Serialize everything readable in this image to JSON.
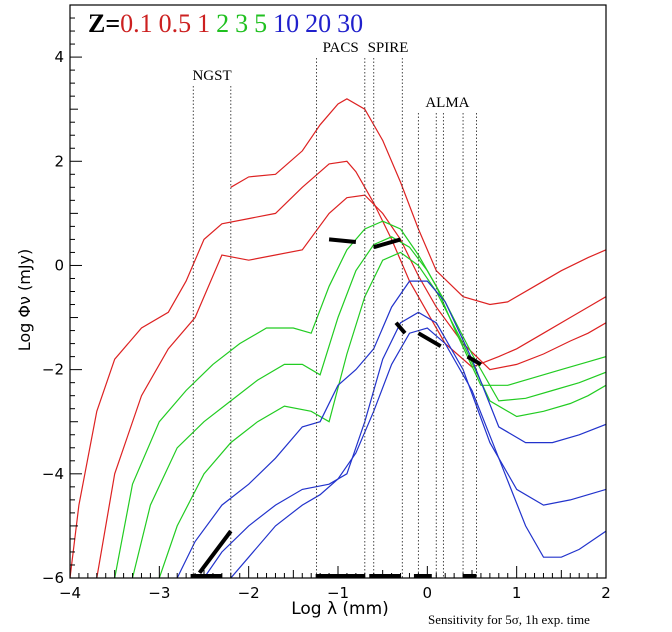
{
  "chart_data": {
    "type": "line",
    "title": "",
    "xlabel": "Log λ (mm)",
    "ylabel": "Log Φν (mJy)",
    "xlim": [
      -4,
      2
    ],
    "ylim": [
      -6,
      5
    ],
    "xticks": [
      "-4",
      "-3",
      "-2",
      "-1",
      "0",
      "1",
      "2"
    ],
    "yticks": [
      "-6",
      "-4",
      "-2",
      "0",
      "2",
      "4"
    ],
    "grid": false,
    "legend": {
      "prefix": "Z=",
      "entries": [
        {
          "label": "0.1",
          "color": "#cc2020"
        },
        {
          "label": "0.5",
          "color": "#cc2020"
        },
        {
          "label": "1",
          "color": "#cc2020"
        },
        {
          "label": "2",
          "color": "#20c020"
        },
        {
          "label": "3",
          "color": "#20c020"
        },
        {
          "label": "5",
          "color": "#20c020"
        },
        {
          "label": "10",
          "color": "#2020cc"
        },
        {
          "label": "20",
          "color": "#2020cc"
        },
        {
          "label": "30",
          "color": "#2020cc"
        }
      ]
    },
    "instruments": [
      {
        "name": "NGST",
        "x": [
          -2.62,
          -2.2
        ]
      },
      {
        "name": "PACS",
        "x": [
          -1.24,
          -0.7
        ]
      },
      {
        "name": "SPIRE",
        "x": [
          -0.6,
          -0.28
        ]
      },
      {
        "name": "ALMA",
        "x": [
          -0.1,
          0.1,
          0.18,
          0.4,
          0.55
        ]
      }
    ],
    "series": [
      {
        "name": "0.1",
        "color": "#dd2222",
        "x": [
          -2.2,
          -2.0,
          -1.7,
          -1.4,
          -1.2,
          -1.0,
          -0.9,
          -0.7,
          -0.5,
          -0.3,
          -0.1,
          0.1,
          0.4,
          0.7,
          0.9,
          1.2,
          1.5,
          1.8,
          2.0
        ],
        "y": [
          1.5,
          1.7,
          1.75,
          2.2,
          2.7,
          3.1,
          3.2,
          3.0,
          2.4,
          1.6,
          0.7,
          -0.1,
          -0.6,
          -0.75,
          -0.7,
          -0.4,
          -0.1,
          0.15,
          0.3
        ]
      },
      {
        "name": "0.5",
        "color": "#dd2222",
        "x": [
          -4.0,
          -3.9,
          -3.7,
          -3.5,
          -3.2,
          -2.9,
          -2.7,
          -2.5,
          -2.3,
          -2.0,
          -1.7,
          -1.4,
          -1.1,
          -0.9,
          -0.8,
          -0.6,
          -0.4,
          -0.2,
          0.0,
          0.2,
          0.5,
          0.8,
          1.0,
          1.3,
          1.6,
          1.8,
          2.0
        ],
        "y": [
          -6.0,
          -4.6,
          -2.8,
          -1.8,
          -1.2,
          -0.9,
          -0.3,
          0.5,
          0.8,
          0.9,
          1.0,
          1.5,
          1.95,
          2.0,
          1.8,
          1.2,
          0.5,
          -0.3,
          -0.9,
          -1.5,
          -1.95,
          -1.75,
          -1.6,
          -1.3,
          -1.0,
          -0.8,
          -0.6
        ]
      },
      {
        "name": "1",
        "color": "#dd2222",
        "x": [
          -3.7,
          -3.5,
          -3.2,
          -2.9,
          -2.6,
          -2.3,
          -2.0,
          -1.7,
          -1.4,
          -1.1,
          -0.9,
          -0.7,
          -0.5,
          -0.3,
          -0.1,
          0.1,
          0.4,
          0.7,
          1.0,
          1.3,
          1.6,
          1.8,
          2.0
        ],
        "y": [
          -6.0,
          -4.0,
          -2.5,
          -1.6,
          -1.0,
          0.2,
          0.1,
          0.2,
          0.3,
          1.0,
          1.3,
          1.35,
          1.0,
          0.5,
          -0.2,
          -0.8,
          -1.5,
          -2.0,
          -1.9,
          -1.7,
          -1.45,
          -1.3,
          -1.1
        ]
      },
      {
        "name": "2",
        "color": "#22cc22",
        "x": [
          -3.5,
          -3.3,
          -3.0,
          -2.7,
          -2.4,
          -2.1,
          -1.8,
          -1.5,
          -1.3,
          -1.1,
          -0.9,
          -0.7,
          -0.5,
          -0.3,
          -0.1,
          0.1,
          0.3,
          0.6,
          0.9,
          1.2,
          1.5,
          1.8,
          2.0
        ],
        "y": [
          -6.0,
          -4.2,
          -3.0,
          -2.4,
          -1.9,
          -1.5,
          -1.2,
          -1.2,
          -1.3,
          -0.4,
          0.3,
          0.7,
          0.85,
          0.7,
          0.2,
          -0.4,
          -1.2,
          -2.3,
          -2.3,
          -2.15,
          -2.0,
          -1.85,
          -1.75
        ]
      },
      {
        "name": "3",
        "color": "#22cc22",
        "x": [
          -3.3,
          -3.1,
          -2.8,
          -2.5,
          -2.2,
          -1.9,
          -1.6,
          -1.4,
          -1.2,
          -1.0,
          -0.8,
          -0.6,
          -0.4,
          -0.2,
          0.0,
          0.2,
          0.5,
          0.8,
          1.1,
          1.4,
          1.7,
          2.0
        ],
        "y": [
          -6.0,
          -4.6,
          -3.5,
          -3.0,
          -2.6,
          -2.2,
          -1.9,
          -1.9,
          -2.1,
          -1.0,
          -0.1,
          0.4,
          0.55,
          0.35,
          -0.1,
          -0.7,
          -1.7,
          -2.6,
          -2.55,
          -2.4,
          -2.25,
          -2.05
        ]
      },
      {
        "name": "5",
        "color": "#22cc22",
        "x": [
          -3.0,
          -2.8,
          -2.5,
          -2.2,
          -1.9,
          -1.6,
          -1.3,
          -1.1,
          -0.9,
          -0.7,
          -0.5,
          -0.3,
          -0.1,
          0.1,
          0.4,
          0.7,
          1.0,
          1.3,
          1.6,
          1.8,
          2.0
        ],
        "y": [
          -6.0,
          -5.0,
          -4.0,
          -3.4,
          -3.0,
          -2.7,
          -2.8,
          -3.0,
          -1.7,
          -0.6,
          0.1,
          0.25,
          0.0,
          -0.5,
          -1.5,
          -2.6,
          -2.9,
          -2.8,
          -2.65,
          -2.5,
          -2.3
        ]
      },
      {
        "name": "10",
        "color": "#2233cc",
        "x": [
          -2.8,
          -2.6,
          -2.3,
          -2.0,
          -1.7,
          -1.4,
          -1.2,
          -1.0,
          -0.8,
          -0.6,
          -0.4,
          -0.2,
          0.0,
          0.2,
          0.5,
          0.8,
          1.1,
          1.4,
          1.7,
          2.0
        ],
        "y": [
          -6.0,
          -5.3,
          -4.6,
          -4.2,
          -3.7,
          -3.1,
          -3.0,
          -2.3,
          -2.0,
          -1.6,
          -0.8,
          -0.3,
          -0.3,
          -0.7,
          -1.8,
          -3.1,
          -3.4,
          -3.4,
          -3.25,
          -3.05
        ]
      },
      {
        "name": "20",
        "color": "#2233cc",
        "x": [
          -2.5,
          -2.3,
          -2.0,
          -1.7,
          -1.4,
          -1.1,
          -0.9,
          -0.7,
          -0.5,
          -0.3,
          -0.1,
          0.1,
          0.4,
          0.7,
          1.0,
          1.3,
          1.6,
          1.8,
          2.0
        ],
        "y": [
          -6.0,
          -5.5,
          -5.0,
          -4.6,
          -4.3,
          -4.2,
          -4.0,
          -3.0,
          -1.8,
          -1.1,
          -0.9,
          -1.1,
          -2.0,
          -3.4,
          -4.3,
          -4.6,
          -4.5,
          -4.4,
          -4.3
        ]
      },
      {
        "name": "30",
        "color": "#2233cc",
        "x": [
          -2.2,
          -2.0,
          -1.7,
          -1.4,
          -1.2,
          -1.0,
          -0.8,
          -0.6,
          -0.4,
          -0.2,
          0.0,
          0.2,
          0.5,
          0.8,
          1.1,
          1.3,
          1.5,
          1.7,
          2.0
        ],
        "y": [
          -6.0,
          -5.6,
          -5.0,
          -4.6,
          -4.4,
          -4.1,
          -3.6,
          -2.8,
          -1.9,
          -1.3,
          -1.2,
          -1.5,
          -2.4,
          -3.7,
          -5.0,
          -5.6,
          -5.6,
          -5.45,
          -5.1
        ]
      }
    ],
    "sensitivity": {
      "label": "Sensitivity for  5σ, 1h exp. time",
      "segments": [
        {
          "x": [
            -2.55,
            -2.2
          ],
          "y": [
            -5.9,
            -5.1
          ]
        },
        {
          "x": [
            -1.1,
            -0.8
          ],
          "y": [
            0.5,
            0.45
          ]
        },
        {
          "x": [
            -0.6,
            -0.3
          ],
          "y": [
            0.35,
            0.5
          ]
        },
        {
          "x": [
            -0.35,
            -0.25
          ],
          "y": [
            -1.1,
            -1.3
          ]
        },
        {
          "x": [
            -0.1,
            0.15
          ],
          "y": [
            -1.3,
            -1.55
          ]
        },
        {
          "x": [
            0.45,
            0.6
          ],
          "y": [
            -1.75,
            -1.9
          ]
        }
      ],
      "bars": [
        {
          "x": [
            -2.65,
            -2.3
          ],
          "y": [
            -6.0,
            -6.0
          ]
        },
        {
          "x": [
            -1.25,
            -0.7
          ],
          "y": [
            -6.0,
            -6.0
          ]
        },
        {
          "x": [
            -0.65,
            -0.3
          ],
          "y": [
            -6.0,
            -6.0
          ]
        },
        {
          "x": [
            -0.15,
            0.05
          ],
          "y": [
            -6.0,
            -6.0
          ]
        },
        {
          "x": [
            0.4,
            0.55
          ],
          "y": [
            -6.0,
            -6.0
          ]
        }
      ]
    }
  }
}
